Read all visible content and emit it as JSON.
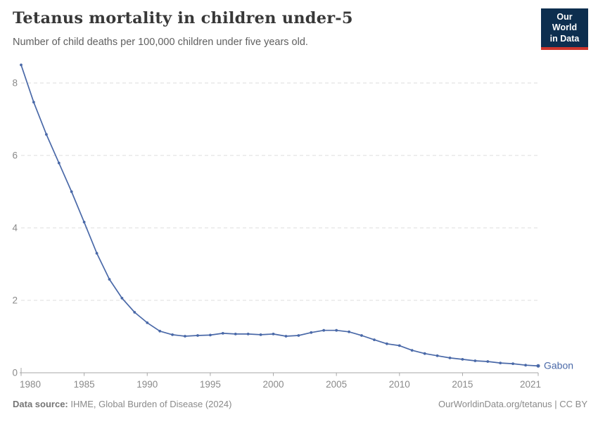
{
  "header": {
    "title": "Tetanus mortality in children under-5",
    "subtitle": "Number of child deaths per 100,000 children under five years old."
  },
  "logo": {
    "line1": "Our World",
    "line2": "in Data",
    "bg_color": "#0d2e4f",
    "accent_color": "#ce352c"
  },
  "chart_data": {
    "type": "line",
    "title": "Tetanus mortality in children under-5",
    "ylabel": "",
    "xlabel": "",
    "xlim": [
      1980,
      2021
    ],
    "ylim": [
      0,
      8.5
    ],
    "x_ticks": [
      1980,
      1985,
      1990,
      1995,
      2000,
      2005,
      2010,
      2015,
      2021
    ],
    "y_ticks": [
      0,
      2,
      4,
      6,
      8
    ],
    "grid": "horizontal-dashed",
    "legend_position": "end-of-line",
    "grid_color": "#dcdcdc",
    "axis_color": "#a7a7a7",
    "tick_label_color": "#8a8a8a",
    "series": [
      {
        "name": "Gabon",
        "color": "#4a69a8",
        "x": [
          1980,
          1981,
          1982,
          1983,
          1984,
          1985,
          1986,
          1987,
          1988,
          1989,
          1990,
          1991,
          1992,
          1993,
          1994,
          1995,
          1996,
          1997,
          1998,
          1999,
          2000,
          2001,
          2002,
          2003,
          2004,
          2005,
          2006,
          2007,
          2008,
          2009,
          2010,
          2011,
          2012,
          2013,
          2014,
          2015,
          2016,
          2017,
          2018,
          2019,
          2020,
          2021
        ],
        "values": [
          8.5,
          7.47,
          6.58,
          5.79,
          5.0,
          4.16,
          3.3,
          2.58,
          2.06,
          1.67,
          1.38,
          1.15,
          1.05,
          1.01,
          1.03,
          1.04,
          1.09,
          1.07,
          1.07,
          1.05,
          1.07,
          1.01,
          1.03,
          1.11,
          1.17,
          1.17,
          1.13,
          1.03,
          0.91,
          0.8,
          0.75,
          0.62,
          0.53,
          0.47,
          0.41,
          0.37,
          0.33,
          0.31,
          0.27,
          0.25,
          0.21,
          0.19
        ]
      }
    ]
  },
  "footer": {
    "source_label": "Data source:",
    "source_value": " IHME, Global Burden of Disease (2024)",
    "credit": "OurWorldinData.org/tetanus | CC BY"
  }
}
